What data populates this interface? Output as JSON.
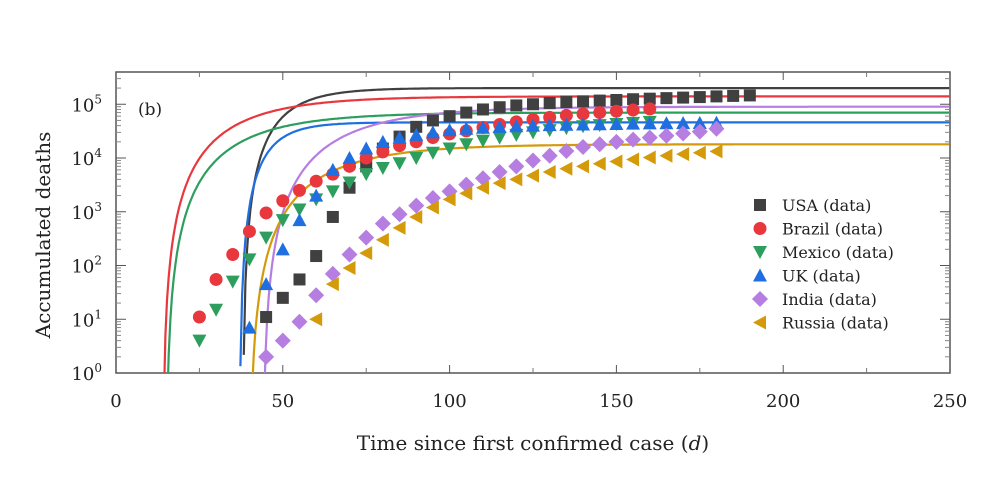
{
  "chart_data": {
    "type": "scatter",
    "panel_label": "(b)",
    "xlabel": "Time since first confirmed case (",
    "xlabel_italic": "d",
    "xlabel_close": ")",
    "ylabel": "Accumulated deaths",
    "xlim": [
      0,
      250
    ],
    "ylim_log10": [
      0,
      5.6
    ],
    "yscale": "log",
    "x_ticks": [
      0,
      50,
      100,
      150,
      200,
      250
    ],
    "x_tick_labels": [
      "0",
      "50",
      "100",
      "150",
      "200",
      "250"
    ],
    "y_ticks_exp": [
      0,
      1,
      2,
      3,
      4,
      5
    ],
    "y_tick_labels": [
      "10",
      "10",
      "10",
      "10",
      "10",
      "10"
    ],
    "y_tick_sups": [
      "0",
      "1",
      "2",
      "3",
      "4",
      "5"
    ],
    "legend_position": "center-right",
    "series": [
      {
        "name": "USA (data)",
        "color": "#404040",
        "marker": "square",
        "x": [
          45,
          50,
          55,
          60,
          65,
          70,
          75,
          80,
          85,
          90,
          95,
          100,
          105,
          110,
          115,
          120,
          125,
          130,
          135,
          140,
          145,
          150,
          155,
          160,
          165,
          170,
          175,
          180,
          185,
          190
        ],
        "y": [
          11,
          25,
          55,
          150,
          800,
          2800,
          7000,
          15000,
          25000,
          38000,
          50000,
          60000,
          70000,
          80000,
          88000,
          95000,
          100000,
          105000,
          110000,
          113000,
          117000,
          120000,
          124000,
          127000,
          130000,
          133000,
          136000,
          140000,
          143000,
          146000
        ],
        "fit": {
          "A": 200000,
          "t0": 38,
          "k": 0.095,
          "xmax": 250
        }
      },
      {
        "name": "Brazil (data)",
        "color": "#e8383d",
        "marker": "circle",
        "x": [
          25,
          30,
          35,
          40,
          45,
          50,
          55,
          60,
          65,
          70,
          75,
          80,
          85,
          90,
          95,
          100,
          105,
          110,
          115,
          120,
          125,
          130,
          135,
          140,
          145,
          150,
          155,
          160
        ],
        "y": [
          11,
          55,
          160,
          430,
          950,
          1600,
          2500,
          3700,
          5000,
          7000,
          10000,
          13000,
          17000,
          20000,
          24000,
          28000,
          32000,
          37000,
          42000,
          47000,
          52000,
          57000,
          62000,
          66000,
          70000,
          74000,
          78000,
          82000
        ],
        "fit": {
          "A": 140000,
          "t0": 14,
          "k": 0.052,
          "xmax": 250
        }
      },
      {
        "name": "Mexico (data)",
        "color": "#2e9e5e",
        "marker": "triangle-down",
        "x": [
          25,
          30,
          35,
          40,
          45,
          50,
          55,
          60,
          65,
          70,
          75,
          80,
          85,
          90,
          95,
          100,
          105,
          110,
          115,
          120,
          125,
          130,
          135,
          140,
          145,
          150,
          155,
          160
        ],
        "y": [
          4,
          15,
          50,
          130,
          330,
          700,
          1100,
          1700,
          2400,
          3500,
          5000,
          6500,
          8000,
          10000,
          12500,
          15000,
          18000,
          21000,
          24000,
          27000,
          30000,
          33000,
          36000,
          39000,
          41000,
          43000,
          45000,
          47000
        ],
        "fit": {
          "A": 70000,
          "t0": 15,
          "k": 0.05,
          "xmax": 250
        }
      },
      {
        "name": "UK (data)",
        "color": "#1f6fe0",
        "marker": "triangle-up",
        "x": [
          40,
          45,
          50,
          55,
          60,
          65,
          70,
          75,
          80,
          85,
          90,
          95,
          100,
          105,
          110,
          115,
          120,
          125,
          130,
          135,
          140,
          145,
          150,
          155,
          160,
          165,
          170,
          175,
          180
        ],
        "y": [
          7,
          45,
          200,
          700,
          2000,
          6000,
          10000,
          15000,
          20000,
          24000,
          27000,
          30000,
          33000,
          35000,
          36500,
          38000,
          39000,
          40000,
          41000,
          41500,
          42000,
          42500,
          43000,
          43500,
          44000,
          44300,
          44600,
          44900,
          45200
        ],
        "fit": {
          "A": 46000,
          "t0": 37,
          "k": 0.13,
          "xmax": 250
        }
      },
      {
        "name": "India (data)",
        "color": "#b57ee0",
        "marker": "diamond",
        "x": [
          45,
          50,
          55,
          60,
          65,
          70,
          75,
          80,
          85,
          90,
          95,
          100,
          105,
          110,
          115,
          120,
          125,
          130,
          135,
          140,
          145,
          150,
          155,
          160,
          165,
          170,
          175,
          180
        ],
        "y": [
          2,
          4,
          9,
          28,
          70,
          160,
          330,
          600,
          900,
          1300,
          1800,
          2400,
          3200,
          4200,
          5500,
          7000,
          9000,
          11000,
          13500,
          16000,
          18000,
          20000,
          22000,
          24000,
          26000,
          28500,
          31000,
          35000
        ],
        "fit": {
          "A": 90000,
          "t0": 44,
          "k": 0.046,
          "xmax": 250
        }
      },
      {
        "name": "Russia (data)",
        "color": "#d49a0a",
        "marker": "triangle-left",
        "x": [
          60,
          65,
          70,
          75,
          80,
          85,
          90,
          95,
          100,
          105,
          110,
          115,
          120,
          125,
          130,
          135,
          140,
          145,
          150,
          155,
          160,
          165,
          170,
          175,
          180
        ],
        "y": [
          10,
          45,
          90,
          170,
          300,
          500,
          800,
          1200,
          1700,
          2200,
          2800,
          3400,
          4000,
          4700,
          5500,
          6300,
          7000,
          7800,
          8600,
          9400,
          10200,
          11000,
          11800,
          12500,
          13300
        ],
        "fit": {
          "A": 18000,
          "t0": 40,
          "k": 0.048,
          "xmax": 250
        }
      }
    ]
  }
}
